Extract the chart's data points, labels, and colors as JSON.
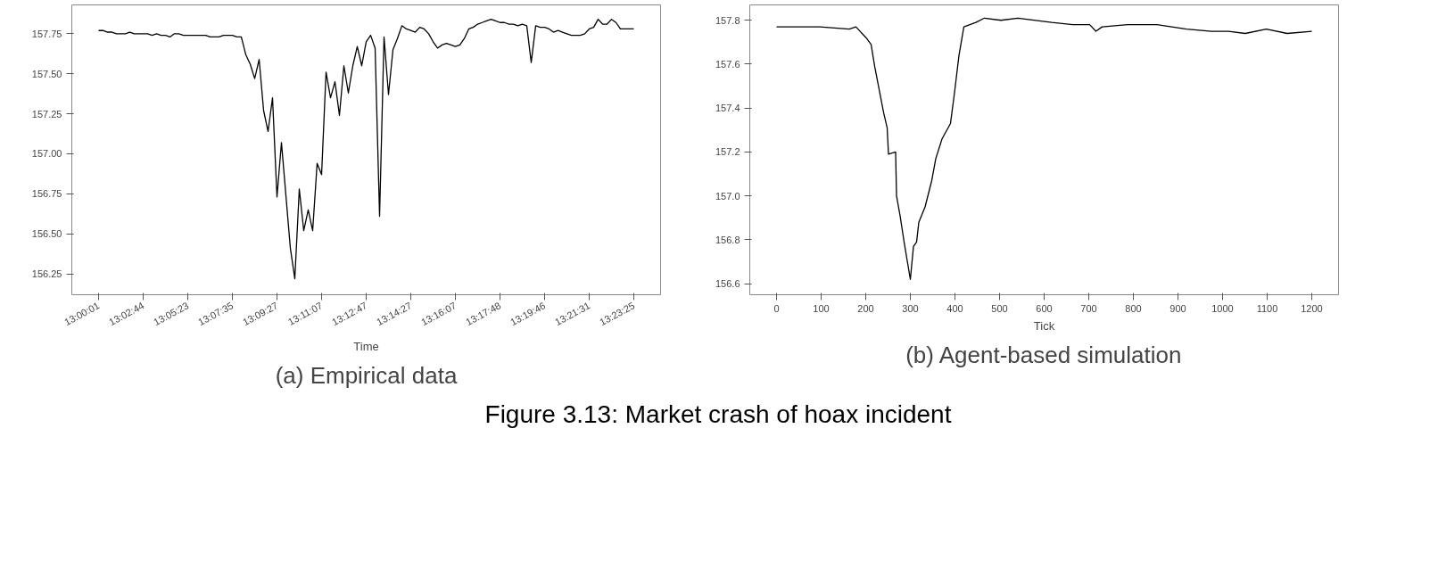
{
  "chart_data": [
    {
      "type": "line",
      "title": "(a) Empirical data",
      "xlabel": "Time",
      "annotations": [
        "Figure 3.13: Market crash of hoax incident"
      ],
      "color": "#000000",
      "grid": false,
      "categories": [
        "13:00:01",
        null,
        null,
        null,
        null,
        null,
        null,
        null,
        null,
        null,
        "13:02:44",
        null,
        null,
        null,
        null,
        null,
        null,
        null,
        null,
        null,
        "13:05:23",
        null,
        null,
        null,
        null,
        null,
        null,
        null,
        null,
        null,
        "13:07:35",
        null,
        null,
        null,
        null,
        null,
        null,
        null,
        null,
        null,
        "13:09:27",
        null,
        null,
        null,
        null,
        null,
        null,
        null,
        null,
        null,
        "13:11:07",
        null,
        null,
        null,
        null,
        null,
        null,
        null,
        null,
        null,
        "13:12:47",
        null,
        null,
        null,
        null,
        null,
        null,
        null,
        null,
        null,
        "13:14:27",
        null,
        null,
        null,
        null,
        null,
        null,
        null,
        null,
        null,
        "13:16:07",
        null,
        null,
        null,
        null,
        null,
        null,
        null,
        null,
        null,
        "13:17:48",
        null,
        null,
        null,
        null,
        null,
        null,
        null,
        null,
        null,
        "13:19:46",
        null,
        null,
        null,
        null,
        null,
        null,
        null,
        null,
        null,
        "13:21:31",
        null,
        null,
        null,
        null,
        null,
        null,
        null,
        null,
        null,
        "13:23:25"
      ],
      "values": [
        157.77,
        157.77,
        157.76,
        157.76,
        157.75,
        157.75,
        157.75,
        157.76,
        157.75,
        157.75,
        157.75,
        157.75,
        157.74,
        157.75,
        157.74,
        157.74,
        157.73,
        157.75,
        157.75,
        157.74,
        157.74,
        157.74,
        157.74,
        157.74,
        157.74,
        157.73,
        157.73,
        157.73,
        157.74,
        157.74,
        157.74,
        157.73,
        157.73,
        157.62,
        157.56,
        157.47,
        157.59,
        157.27,
        157.14,
        157.35,
        156.73,
        157.07,
        156.74,
        156.41,
        156.22,
        156.78,
        156.52,
        156.65,
        156.52,
        156.94,
        156.87,
        157.51,
        157.35,
        157.45,
        157.24,
        157.55,
        157.38,
        157.55,
        157.67,
        157.55,
        157.7,
        157.74,
        157.66,
        156.61,
        157.73,
        157.37,
        157.65,
        157.72,
        157.8,
        157.78,
        157.77,
        157.76,
        157.79,
        157.78,
        157.75,
        157.7,
        157.66,
        157.68,
        157.69,
        157.68,
        157.67,
        157.68,
        157.72,
        157.78,
        157.79,
        157.81,
        157.82,
        157.83,
        157.84,
        157.83,
        157.82,
        157.82,
        157.81,
        157.81,
        157.8,
        157.81,
        157.8,
        157.57,
        157.8,
        157.79,
        157.79,
        157.78,
        157.76,
        157.77,
        157.76,
        157.75,
        157.74,
        157.74,
        157.74,
        157.75,
        157.78,
        157.79,
        157.84,
        157.81,
        157.81,
        157.84,
        157.82,
        157.78,
        157.78,
        157.78,
        157.78
      ],
      "ylim": [
        156.12,
        157.93
      ],
      "yticks": [
        {
          "value": 156.25,
          "label": "156.25"
        },
        {
          "value": 156.5,
          "label": "156.50"
        },
        156.75,
        {
          "value": 157.0,
          "label": "157.00"
        },
        157.25,
        {
          "value": 157.5,
          "label": "157.50"
        },
        157.75
      ]
    },
    {
      "type": "line",
      "title": "(b) Agent-based simulation",
      "xlabel": "Tick",
      "color": "#000000",
      "grid": false,
      "x": [
        0,
        97,
        163,
        178,
        201,
        212,
        220,
        240,
        248,
        251,
        267,
        269,
        277,
        286,
        300,
        307,
        314,
        319,
        333,
        348,
        357,
        371,
        390,
        399,
        409,
        420,
        447,
        466,
        503,
        541,
        617,
        664,
        702,
        716,
        730,
        787,
        853,
        919,
        975,
        1013,
        1051,
        1098,
        1145,
        1200
      ],
      "values": [
        157.77,
        157.77,
        157.76,
        157.77,
        157.72,
        157.69,
        157.59,
        157.38,
        157.31,
        157.19,
        157.2,
        157.0,
        156.91,
        156.79,
        156.62,
        156.77,
        156.79,
        156.88,
        156.95,
        157.07,
        157.17,
        157.26,
        157.33,
        157.47,
        157.64,
        157.77,
        157.79,
        157.81,
        157.8,
        157.81,
        157.79,
        157.78,
        157.78,
        157.75,
        157.77,
        157.78,
        157.78,
        157.76,
        157.75,
        157.75,
        157.74,
        157.76,
        157.74,
        157.75
      ],
      "xlim": [
        -60,
        1260
      ],
      "xticks": [
        0,
        100,
        200,
        300,
        400,
        500,
        600,
        700,
        800,
        900,
        1000,
        1100,
        1200
      ],
      "ylim": [
        156.55,
        157.87
      ],
      "yticks": [
        156.6,
        156.8,
        {
          "value": 157.0,
          "label": "157.0"
        },
        157.2,
        157.4,
        157.6,
        157.8
      ]
    }
  ]
}
